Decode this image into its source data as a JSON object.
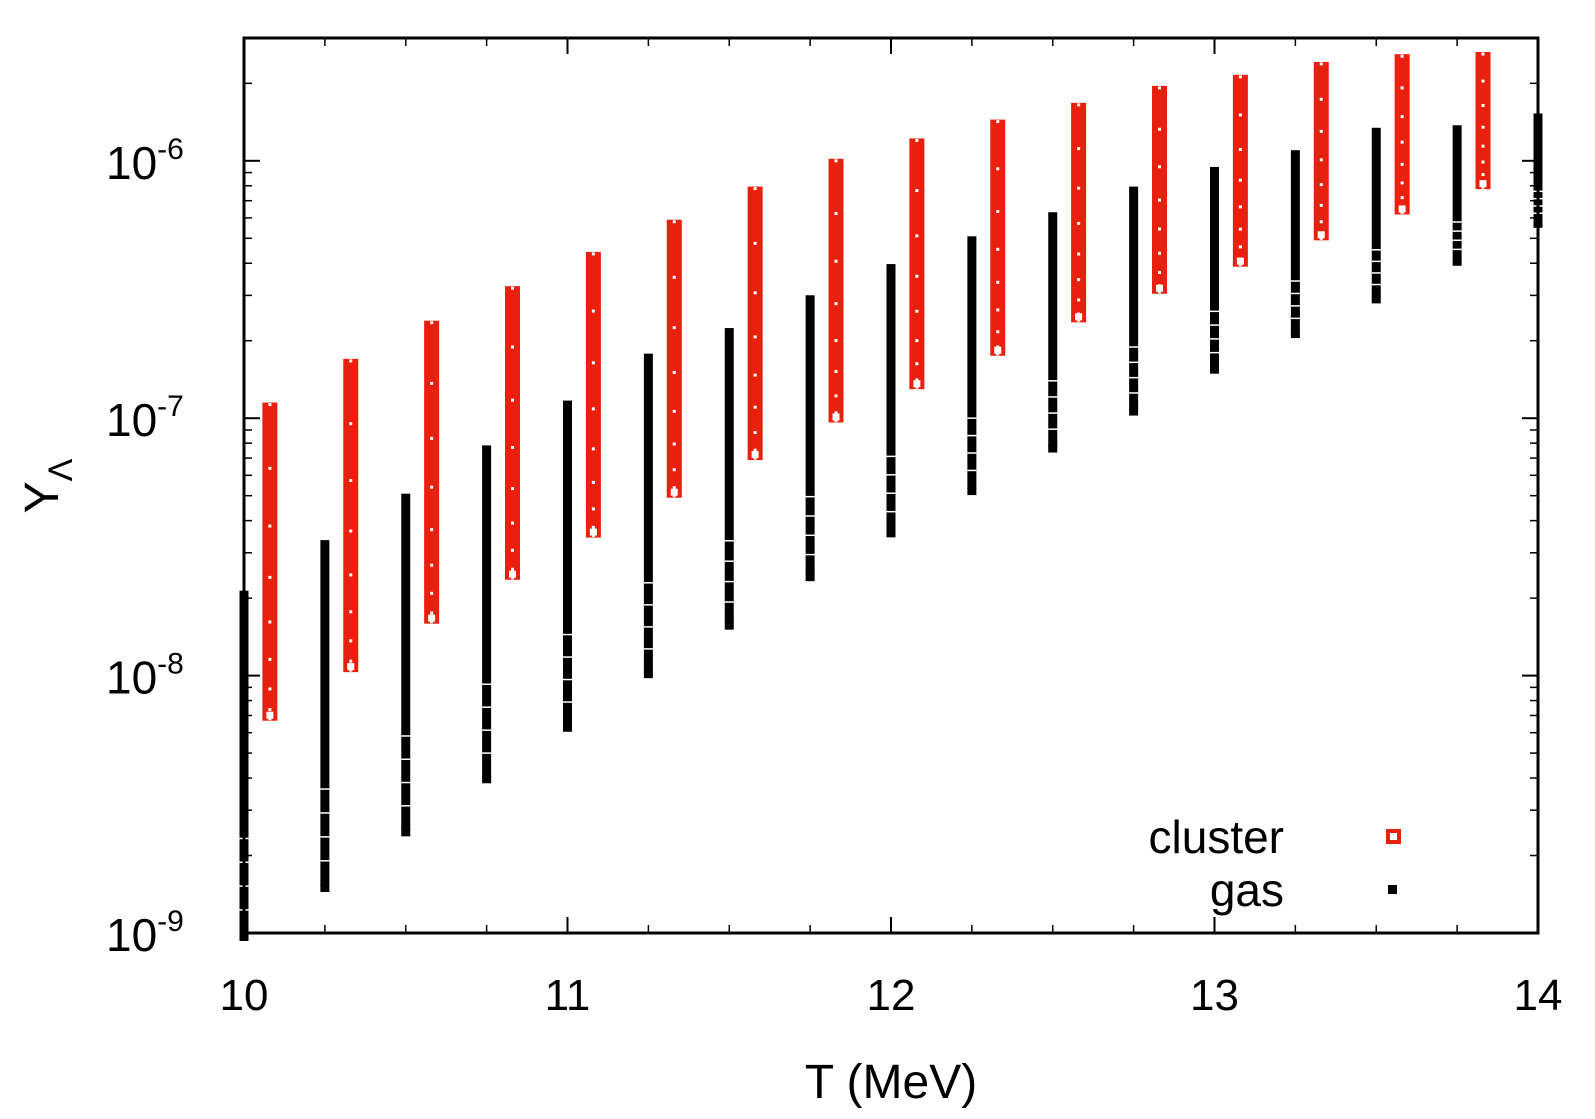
{
  "chart_data": {
    "type": "scatter",
    "title": "",
    "xlabel": "T (MeV)",
    "ylabel": {
      "base": "Y",
      "subscript": "Λ"
    },
    "xlim": [
      10,
      14
    ],
    "ylim": [
      1e-09,
      3e-06
    ],
    "yscale": "log",
    "x_ticks": [
      {
        "value": 10,
        "label": "10"
      },
      {
        "value": 11,
        "label": "11"
      },
      {
        "value": 12,
        "label": "12"
      },
      {
        "value": 13,
        "label": "13"
      },
      {
        "value": 14,
        "label": "14"
      }
    ],
    "y_ticks": [
      {
        "value": 1e-09,
        "base": "10",
        "exp": "-9"
      },
      {
        "value": 1e-08,
        "base": "10",
        "exp": "-8"
      },
      {
        "value": 1e-07,
        "base": "10",
        "exp": "-7"
      },
      {
        "value": 1e-06,
        "base": "10",
        "exp": "-6"
      }
    ],
    "legend_position": "bottom-right",
    "series": [
      {
        "name": "cluster",
        "color": "#e8200d",
        "marker": "open-square",
        "points": [
          {
            "x": 10.08,
            "ymin": 6.8e-09,
            "ymax": 1.13e-07
          },
          {
            "x": 10.33,
            "ymin": 1.05e-08,
            "ymax": 1.67e-07
          },
          {
            "x": 10.58,
            "ymin": 1.62e-08,
            "ymax": 2.35e-07
          },
          {
            "x": 10.83,
            "ymin": 2.4e-08,
            "ymax": 3.2e-07
          },
          {
            "x": 11.08,
            "ymin": 3.5e-08,
            "ymax": 4.35e-07
          },
          {
            "x": 11.33,
            "ymin": 5e-08,
            "ymax": 5.8e-07
          },
          {
            "x": 11.58,
            "ymin": 7e-08,
            "ymax": 7.8e-07
          },
          {
            "x": 11.83,
            "ymin": 9.8e-08,
            "ymax": 1e-06
          },
          {
            "x": 12.08,
            "ymin": 1.32e-07,
            "ymax": 1.2e-06
          },
          {
            "x": 12.33,
            "ymin": 1.78e-07,
            "ymax": 1.42e-06
          },
          {
            "x": 12.58,
            "ymin": 2.4e-07,
            "ymax": 1.65e-06
          },
          {
            "x": 12.83,
            "ymin": 3.1e-07,
            "ymax": 1.92e-06
          },
          {
            "x": 13.08,
            "ymin": 3.95e-07,
            "ymax": 2.12e-06
          },
          {
            "x": 13.33,
            "ymin": 5e-07,
            "ymax": 2.38e-06
          },
          {
            "x": 13.58,
            "ymin": 6.3e-07,
            "ymax": 2.55e-06
          },
          {
            "x": 13.83,
            "ymin": 7.9e-07,
            "ymax": 2.6e-06
          }
        ]
      },
      {
        "name": "gas",
        "color": "#000000",
        "marker": "filled-square",
        "points": [
          {
            "x": 10.0,
            "ymin": 1e-09,
            "ymax": 2.1e-08
          },
          {
            "x": 10.25,
            "ymin": 1.55e-09,
            "ymax": 3.3e-08
          },
          {
            "x": 10.5,
            "ymin": 2.55e-09,
            "ymax": 5e-08
          },
          {
            "x": 10.75,
            "ymin": 4.1e-09,
            "ymax": 7.7e-08
          },
          {
            "x": 11.0,
            "ymin": 6.5e-09,
            "ymax": 1.15e-07
          },
          {
            "x": 11.25,
            "ymin": 1.05e-08,
            "ymax": 1.75e-07
          },
          {
            "x": 11.5,
            "ymin": 1.62e-08,
            "ymax": 2.2e-07
          },
          {
            "x": 11.75,
            "ymin": 2.5e-08,
            "ymax": 2.95e-07
          },
          {
            "x": 12.0,
            "ymin": 3.7e-08,
            "ymax": 3.9e-07
          },
          {
            "x": 12.25,
            "ymin": 5.4e-08,
            "ymax": 5e-07
          },
          {
            "x": 12.5,
            "ymin": 7.9e-08,
            "ymax": 6.2e-07
          },
          {
            "x": 12.75,
            "ymin": 1.1e-07,
            "ymax": 7.8e-07
          },
          {
            "x": 13.0,
            "ymin": 1.6e-07,
            "ymax": 9.3e-07
          },
          {
            "x": 13.25,
            "ymin": 2.2e-07,
            "ymax": 1.08e-06
          },
          {
            "x": 13.5,
            "ymin": 3e-07,
            "ymax": 1.32e-06
          },
          {
            "x": 13.75,
            "ymin": 4.2e-07,
            "ymax": 1.35e-06
          },
          {
            "x": 14.0,
            "ymin": 5.9e-07,
            "ymax": 1.5e-06
          }
        ]
      }
    ]
  }
}
